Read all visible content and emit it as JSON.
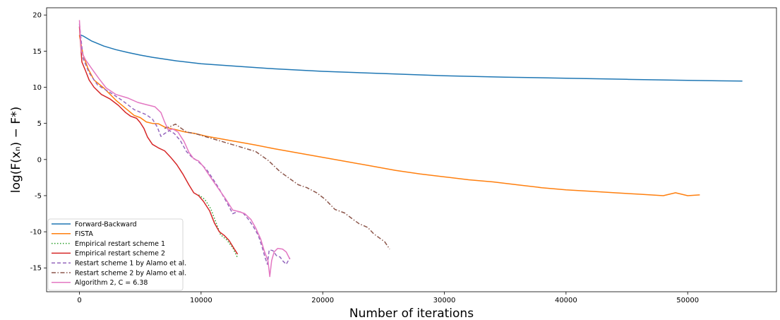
{
  "chart_data": {
    "type": "line",
    "title": "",
    "xlabel": "Number of iterations",
    "ylabel": "log(F(xₙ) − F*)",
    "xlim": [
      -2700,
      57300
    ],
    "ylim": [
      -18.3,
      21.0
    ],
    "xticks": [
      0,
      10000,
      20000,
      30000,
      40000,
      50000
    ],
    "yticks": [
      20,
      15,
      10,
      5,
      0,
      -5,
      -10,
      -15
    ],
    "grid": false,
    "legend_position": "lower-left",
    "series": [
      {
        "name": "Forward-Backward",
        "color": "#1f77b4",
        "style": "solid",
        "points": [
          [
            0,
            17.3
          ],
          [
            300,
            17.1
          ],
          [
            1000,
            16.4
          ],
          [
            2000,
            15.7
          ],
          [
            3000,
            15.2
          ],
          [
            4000,
            14.8
          ],
          [
            5000,
            14.45
          ],
          [
            6000,
            14.15
          ],
          [
            8000,
            13.65
          ],
          [
            10000,
            13.25
          ],
          [
            13000,
            12.9
          ],
          [
            16000,
            12.55
          ],
          [
            20000,
            12.2
          ],
          [
            25000,
            11.9
          ],
          [
            30000,
            11.6
          ],
          [
            35000,
            11.4
          ],
          [
            40000,
            11.25
          ],
          [
            45000,
            11.1
          ],
          [
            50000,
            10.95
          ],
          [
            54500,
            10.85
          ]
        ]
      },
      {
        "name": "FISTA",
        "color": "#ff7f0e",
        "style": "solid",
        "points": [
          [
            0,
            17.2
          ],
          [
            300,
            14.5
          ],
          [
            700,
            12.6
          ],
          [
            1200,
            11.0
          ],
          [
            2000,
            9.9
          ],
          [
            3000,
            8.2
          ],
          [
            4000,
            6.8
          ],
          [
            4500,
            6.1
          ],
          [
            5000,
            5.8
          ],
          [
            5500,
            5.2
          ],
          [
            6000,
            5.0
          ],
          [
            6500,
            4.95
          ],
          [
            7000,
            4.5
          ],
          [
            7500,
            4.3
          ],
          [
            8000,
            4.1
          ],
          [
            8700,
            3.8
          ],
          [
            9500,
            3.6
          ],
          [
            10500,
            3.2
          ],
          [
            11500,
            2.9
          ],
          [
            12500,
            2.6
          ],
          [
            13500,
            2.3
          ],
          [
            14500,
            2.0
          ],
          [
            16000,
            1.5
          ],
          [
            18000,
            0.9
          ],
          [
            20000,
            0.3
          ],
          [
            22000,
            -0.3
          ],
          [
            24000,
            -0.9
          ],
          [
            26000,
            -1.5
          ],
          [
            28000,
            -2.0
          ],
          [
            30000,
            -2.4
          ],
          [
            32000,
            -2.8
          ],
          [
            34000,
            -3.1
          ],
          [
            36000,
            -3.5
          ],
          [
            38000,
            -3.9
          ],
          [
            40000,
            -4.2
          ],
          [
            42000,
            -4.4
          ],
          [
            44000,
            -4.6
          ],
          [
            46000,
            -4.8
          ],
          [
            48000,
            -5.0
          ],
          [
            49000,
            -4.6
          ],
          [
            50000,
            -5.0
          ],
          [
            51000,
            -4.9
          ]
        ]
      },
      {
        "name": "Empirical restart scheme 1",
        "color": "#2ca02c",
        "style": "dotted",
        "points": [
          [
            9800,
            -4.9
          ],
          [
            10300,
            -5.5
          ],
          [
            10800,
            -6.8
          ],
          [
            11200,
            -8.6
          ],
          [
            11600,
            -10.4
          ],
          [
            12100,
            -11.1
          ],
          [
            12600,
            -12.2
          ],
          [
            13000,
            -13.6
          ]
        ]
      },
      {
        "name": "Empirical restart scheme 2",
        "color": "#d62728",
        "style": "solid",
        "points": [
          [
            0,
            18.4
          ],
          [
            200,
            13.5
          ],
          [
            500,
            12.3
          ],
          [
            800,
            11.0
          ],
          [
            1200,
            10.0
          ],
          [
            1800,
            9.0
          ],
          [
            2500,
            8.4
          ],
          [
            3200,
            7.5
          ],
          [
            3800,
            6.5
          ],
          [
            4200,
            6.0
          ],
          [
            4700,
            5.7
          ],
          [
            5000,
            5.1
          ],
          [
            5300,
            4.3
          ],
          [
            5600,
            3.1
          ],
          [
            6000,
            2.1
          ],
          [
            6500,
            1.6
          ],
          [
            7000,
            1.2
          ],
          [
            7500,
            0.3
          ],
          [
            8000,
            -0.7
          ],
          [
            8500,
            -2.0
          ],
          [
            9000,
            -3.5
          ],
          [
            9400,
            -4.6
          ],
          [
            9800,
            -5.0
          ],
          [
            10200,
            -5.8
          ],
          [
            10700,
            -7.1
          ],
          [
            11100,
            -8.8
          ],
          [
            11500,
            -10.0
          ],
          [
            11900,
            -10.5
          ],
          [
            12300,
            -11.2
          ],
          [
            12700,
            -12.3
          ],
          [
            13000,
            -13.1
          ]
        ]
      },
      {
        "name": "Restart scheme 1 by Alamo et al.",
        "color": "#9467bd",
        "style": "dashed",
        "points": [
          [
            0,
            18.8
          ],
          [
            300,
            14.0
          ],
          [
            800,
            12.0
          ],
          [
            1500,
            10.3
          ],
          [
            2500,
            9.3
          ],
          [
            3500,
            8.2
          ],
          [
            4500,
            6.9
          ],
          [
            5500,
            6.2
          ],
          [
            6000,
            5.6
          ],
          [
            6400,
            4.5
          ],
          [
            6700,
            3.2
          ],
          [
            7000,
            3.6
          ],
          [
            7400,
            4.0
          ],
          [
            7800,
            3.6
          ],
          [
            8300,
            2.6
          ],
          [
            8800,
            1.1
          ],
          [
            9200,
            0.4
          ],
          [
            9700,
            -0.2
          ],
          [
            10100,
            -0.8
          ],
          [
            10500,
            -1.5
          ],
          [
            10900,
            -2.5
          ],
          [
            11400,
            -3.8
          ],
          [
            11800,
            -5.0
          ],
          [
            12200,
            -6.2
          ],
          [
            12600,
            -7.5
          ],
          [
            13000,
            -7.2
          ],
          [
            13400,
            -7.3
          ],
          [
            13900,
            -8.3
          ],
          [
            14300,
            -9.3
          ],
          [
            14700,
            -10.5
          ],
          [
            15000,
            -12.0
          ],
          [
            15250,
            -13.5
          ],
          [
            15450,
            -14.5
          ],
          [
            15600,
            -12.5
          ],
          [
            15900,
            -12.6
          ],
          [
            16200,
            -13.3
          ],
          [
            16500,
            -13.5
          ],
          [
            16700,
            -14.0
          ],
          [
            17000,
            -14.5
          ],
          [
            17300,
            -13.6
          ]
        ]
      },
      {
        "name": "Restart scheme 2 by Alamo et al.",
        "color": "#8c564b",
        "style": "dashdot",
        "points": [
          [
            7000,
            4.3
          ],
          [
            7500,
            4.6
          ],
          [
            7900,
            4.9
          ],
          [
            8300,
            4.4
          ],
          [
            8800,
            3.8
          ],
          [
            9500,
            3.6
          ],
          [
            10500,
            3.1
          ],
          [
            11500,
            2.6
          ],
          [
            12500,
            2.1
          ],
          [
            13500,
            1.6
          ],
          [
            14500,
            1.1
          ],
          [
            15500,
            -0.1
          ],
          [
            16500,
            -1.7
          ],
          [
            17000,
            -2.3
          ],
          [
            17500,
            -2.9
          ],
          [
            18000,
            -3.5
          ],
          [
            18700,
            -3.9
          ],
          [
            19500,
            -4.6
          ],
          [
            20200,
            -5.5
          ],
          [
            21000,
            -6.9
          ],
          [
            21800,
            -7.4
          ],
          [
            22500,
            -8.3
          ],
          [
            23000,
            -8.9
          ],
          [
            23700,
            -9.4
          ],
          [
            24200,
            -10.3
          ],
          [
            24700,
            -10.9
          ],
          [
            25100,
            -11.4
          ],
          [
            25500,
            -12.4
          ]
        ]
      },
      {
        "name": "Algorithm 2, C = 6.38",
        "color": "#e377c2",
        "style": "solid",
        "points": [
          [
            0,
            19.3
          ],
          [
            150,
            15.0
          ],
          [
            500,
            13.8
          ],
          [
            1000,
            12.6
          ],
          [
            1600,
            11.2
          ],
          [
            2200,
            9.9
          ],
          [
            3000,
            9.0
          ],
          [
            4000,
            8.5
          ],
          [
            4800,
            7.9
          ],
          [
            5500,
            7.6
          ],
          [
            6200,
            7.3
          ],
          [
            6700,
            6.5
          ],
          [
            7000,
            5.2
          ],
          [
            7300,
            4.1
          ],
          [
            7700,
            4.2
          ],
          [
            8100,
            3.8
          ],
          [
            8600,
            2.5
          ],
          [
            9000,
            1.0
          ],
          [
            9400,
            0.1
          ],
          [
            9800,
            -0.2
          ],
          [
            10200,
            -1.0
          ],
          [
            10600,
            -2.0
          ],
          [
            11000,
            -3.0
          ],
          [
            11500,
            -4.2
          ],
          [
            12000,
            -5.4
          ],
          [
            12600,
            -7.0
          ],
          [
            13100,
            -7.2
          ],
          [
            13600,
            -7.5
          ],
          [
            14100,
            -8.3
          ],
          [
            14500,
            -9.5
          ],
          [
            14900,
            -11.0
          ],
          [
            15200,
            -12.7
          ],
          [
            15500,
            -14.0
          ],
          [
            15650,
            -16.2
          ],
          [
            15800,
            -14.0
          ],
          [
            16000,
            -12.8
          ],
          [
            16300,
            -12.3
          ],
          [
            16700,
            -12.4
          ],
          [
            17000,
            -12.8
          ],
          [
            17300,
            -13.8
          ]
        ]
      }
    ]
  }
}
